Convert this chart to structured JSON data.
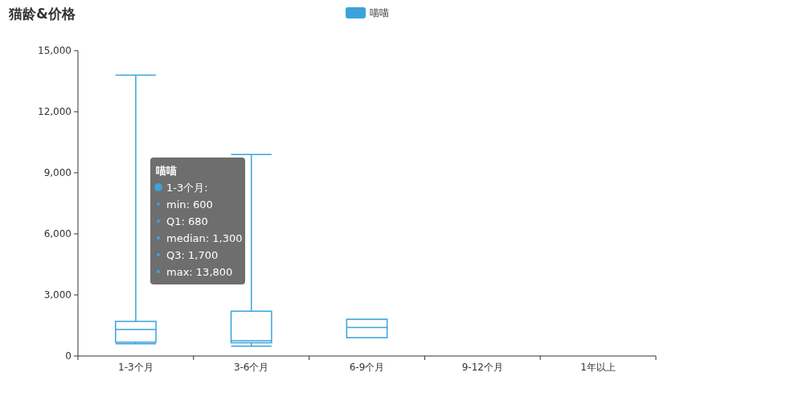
{
  "chart_data": {
    "type": "box",
    "title": "猫龄&价格",
    "categories": [
      "1-3个月",
      "3-6个月",
      "6-9个月",
      "9-12个月",
      "1年以上"
    ],
    "series": [
      {
        "name": "喵喵",
        "color": "#3ba3dc",
        "boxes": [
          {
            "low": 600,
            "q1": 680,
            "median": 1300,
            "q3": 1700,
            "high": 13800
          },
          {
            "low": 480,
            "q1": 650,
            "median": 750,
            "q3": 2200,
            "high": 9900
          },
          {
            "low": 900,
            "q1": 900,
            "median": 1400,
            "q3": 1800,
            "high": 1800
          },
          null,
          null
        ]
      }
    ],
    "ylim": [
      0,
      15000
    ],
    "yticks": [
      {
        "value": 0,
        "label": "0"
      },
      {
        "value": 3000,
        "label": "3,000"
      },
      {
        "value": 6000,
        "label": "6,000"
      },
      {
        "value": 9000,
        "label": "9,000"
      },
      {
        "value": 12000,
        "label": "12,000"
      },
      {
        "value": 15000,
        "label": "15,000"
      }
    ],
    "grid": false,
    "legend": "top",
    "annotations": [
      "1-3个月:",
      "min: 600",
      "Q1: 680",
      "median: 1,300",
      "Q3: 1,700",
      "max: 13,800"
    ]
  }
}
